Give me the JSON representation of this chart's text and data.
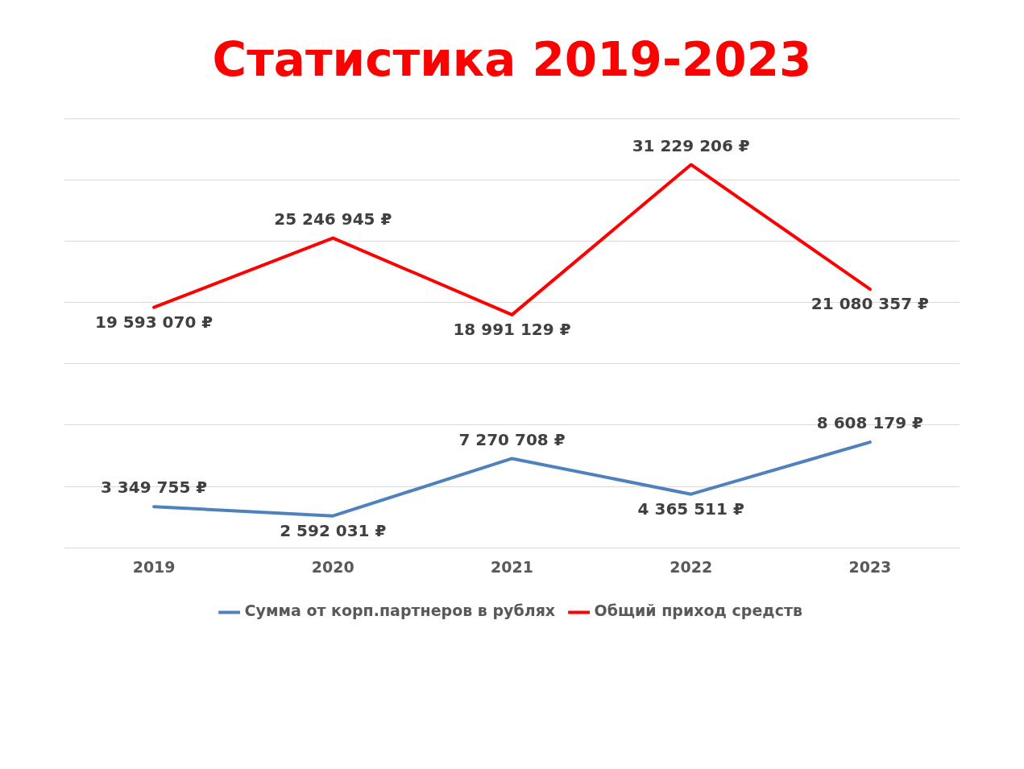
{
  "chart_data": {
    "type": "line",
    "title": "Статистика 2019-2023",
    "categories": [
      "2019",
      "2020",
      "2021",
      "2022",
      "2023"
    ],
    "series": [
      {
        "name": "Сумма от корп.партнеров в рублях",
        "color": "#4f81bd",
        "values": [
          3349755,
          2592031,
          7270708,
          4365511,
          8608179
        ],
        "value_labels": [
          "3 349 755 ₽",
          "2 592 031 ₽",
          "7 270 708 ₽",
          "4 365 511 ₽",
          "8 608 179 ₽"
        ]
      },
      {
        "name": "Общий приход средств",
        "color": "#ff0000",
        "values": [
          19593070,
          25246945,
          18991129,
          31229206,
          21080357
        ],
        "value_labels": [
          "19 593 070 ₽",
          "25 246 945 ₽",
          "18 991 129 ₽",
          "31 229 206 ₽",
          "21 080 357 ₽"
        ]
      }
    ],
    "ylim": [
      0,
      35000000
    ],
    "yticks": [
      {
        "value": 0,
        "label": null
      },
      {
        "value": 5000000,
        "label": null
      },
      {
        "value": 10000000,
        "label": null
      },
      {
        "value": 15000000,
        "label": null
      },
      {
        "value": 20000000,
        "label": null
      },
      {
        "value": 25000000,
        "label": null
      },
      {
        "value": 30000000,
        "label": null
      },
      {
        "value": 35000000,
        "label": null
      }
    ],
    "tick_labels": "x",
    "grid": "y",
    "legend": "bottom",
    "marker": "none",
    "line_style": "solid"
  }
}
